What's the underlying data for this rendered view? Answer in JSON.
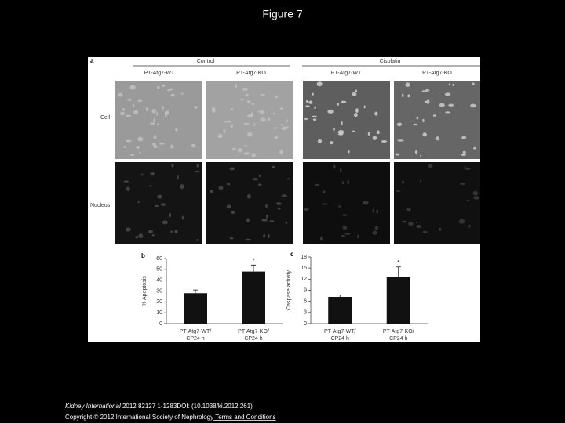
{
  "title": "Figure 7",
  "panel_a": {
    "label": "a",
    "groups": [
      "Control",
      "Cisplatin"
    ],
    "columns": [
      "PT-Atg7-WT",
      "PT-Atg7-KO",
      "PT-Atg7-WT",
      "PT-Atg7-KO"
    ],
    "rows": [
      "Cell",
      "Nucleus"
    ]
  },
  "chart_data": [
    {
      "type": "bar",
      "label": "b",
      "ylabel": "% Apoptosis",
      "categories": [
        [
          "PT-Atg7-WT/",
          "CP24 h"
        ],
        [
          "PT-Atg7-KO/",
          "CP24 h"
        ]
      ],
      "values": [
        28,
        48
      ],
      "errors": [
        3,
        6
      ],
      "significance": [
        null,
        "*"
      ],
      "color": "#111111",
      "ylim": [
        0,
        60
      ],
      "yticks": [
        0,
        10,
        20,
        30,
        40,
        50,
        60
      ]
    },
    {
      "type": "bar",
      "label": "c",
      "ylabel": "Caspase activity",
      "categories": [
        [
          "PT-Atg7-WT/",
          "CP24 h"
        ],
        [
          "PT-Atg7-KO/",
          "CP24 h"
        ]
      ],
      "values": [
        7.2,
        12.5
      ],
      "errors": [
        0.5,
        2.8
      ],
      "significance": [
        null,
        "*"
      ],
      "color": "#111111",
      "ylim": [
        0,
        18
      ],
      "yticks": [
        0,
        3,
        6,
        9,
        12,
        15,
        18
      ]
    }
  ],
  "footer": {
    "journal": "Kidney International",
    "citation": " 2012 82127 1-1283DOI: (10.1038/ki.2012.261)",
    "copyright": "Copyright © 2012 International Society of Nephrology",
    "link": " Terms and Conditions"
  }
}
